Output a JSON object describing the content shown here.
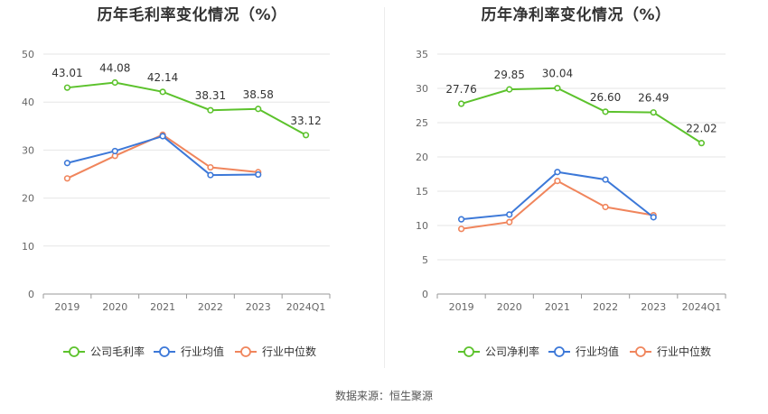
{
  "source": "数据来源：恒生聚源",
  "chart_data": [
    {
      "type": "line",
      "title": "历年毛利率变化情况（%）",
      "categories": [
        "2019",
        "2020",
        "2021",
        "2022",
        "2023",
        "2024Q1"
      ],
      "ylim": [
        0,
        50
      ],
      "yticks": [
        0,
        10,
        20,
        30,
        40,
        50
      ],
      "grid": true,
      "legend_position": "bottom",
      "series": [
        {
          "name": "公司毛利率",
          "color": "#5cc22c",
          "values": [
            43.01,
            44.08,
            42.14,
            38.31,
            38.58,
            33.12
          ],
          "labels": [
            "43.01",
            "44.08",
            "42.14",
            "38.31",
            "38.58",
            "33.12"
          ]
        },
        {
          "name": "行业均值",
          "color": "#3c78d8",
          "values": [
            27.3,
            29.8,
            32.9,
            24.8,
            24.9,
            null
          ]
        },
        {
          "name": "行业中位数",
          "color": "#f0855c",
          "values": [
            24.1,
            28.8,
            33.2,
            26.4,
            25.4,
            null
          ]
        }
      ]
    },
    {
      "type": "line",
      "title": "历年净利率变化情况（%）",
      "categories": [
        "2019",
        "2020",
        "2021",
        "2022",
        "2023",
        "2024Q1"
      ],
      "ylim": [
        0,
        35
      ],
      "yticks": [
        0,
        5,
        10,
        15,
        20,
        25,
        30,
        35
      ],
      "grid": true,
      "legend_position": "bottom",
      "series": [
        {
          "name": "公司净利率",
          "color": "#5cc22c",
          "values": [
            27.76,
            29.85,
            30.04,
            26.6,
            26.49,
            22.02
          ],
          "labels": [
            "27.76",
            "29.85",
            "30.04",
            "26.60",
            "26.49",
            "22.02"
          ]
        },
        {
          "name": "行业均值",
          "color": "#3c78d8",
          "values": [
            10.9,
            11.6,
            17.8,
            16.7,
            11.2,
            null
          ]
        },
        {
          "name": "行业中位数",
          "color": "#f0855c",
          "values": [
            9.5,
            10.5,
            16.5,
            12.7,
            11.5,
            null
          ]
        }
      ]
    }
  ]
}
